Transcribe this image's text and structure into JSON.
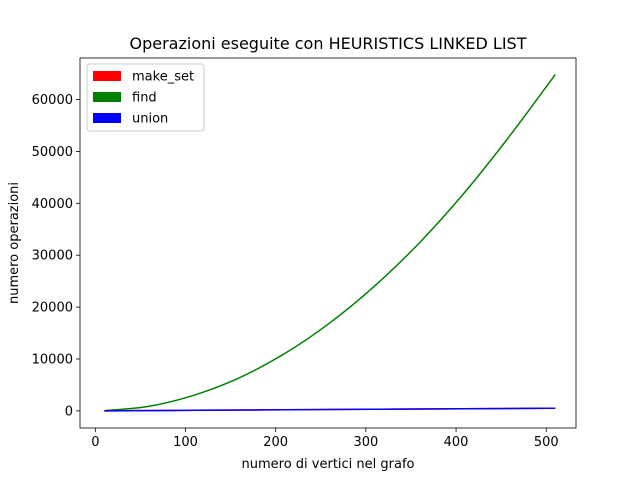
{
  "chart_data": {
    "type": "line",
    "title": "Operazioni eseguite con HEURISTICS LINKED LIST",
    "xlabel": "numero di vertici nel grafo",
    "ylabel": "numero operazioni",
    "xlim": [
      -17,
      533
    ],
    "ylim": [
      -3300,
      68000
    ],
    "xticks": [
      0,
      100,
      200,
      300,
      400,
      500
    ],
    "yticks": [
      0,
      10000,
      20000,
      30000,
      40000,
      50000,
      60000
    ],
    "grid": false,
    "legend_position": "top-left",
    "x": [
      10,
      60,
      110,
      160,
      210,
      260,
      310,
      360,
      410,
      460,
      510
    ],
    "series": [
      {
        "name": "make_set",
        "color": "#ff0000",
        "values": [
          10,
          60,
          110,
          160,
          210,
          260,
          310,
          360,
          410,
          460,
          510
        ]
      },
      {
        "name": "find",
        "color": "#008000",
        "values": [
          25,
          900,
          3050,
          6400,
          11050,
          16950,
          24100,
          32500,
          42200,
          53100,
          64800
        ]
      },
      {
        "name": "union",
        "color": "#0000ff",
        "values": [
          9,
          59,
          109,
          159,
          209,
          259,
          309,
          359,
          409,
          459,
          509
        ]
      }
    ]
  }
}
